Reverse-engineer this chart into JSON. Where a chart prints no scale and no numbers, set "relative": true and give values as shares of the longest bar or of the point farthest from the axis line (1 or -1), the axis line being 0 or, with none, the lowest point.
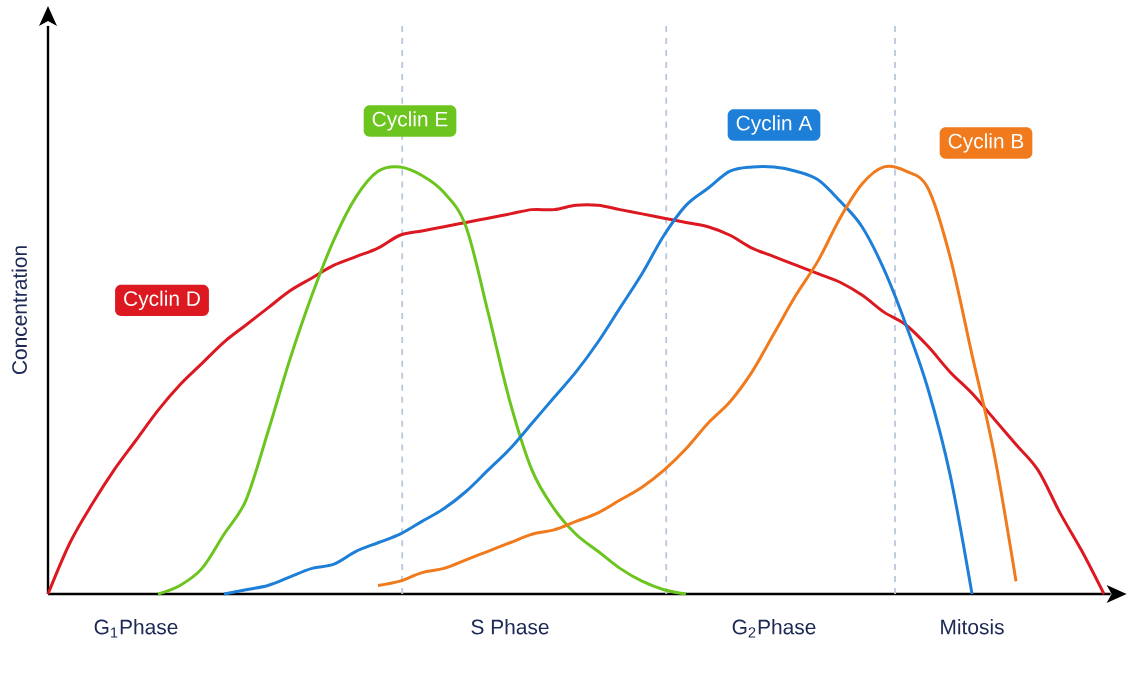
{
  "chart_data": {
    "type": "line",
    "relative": true,
    "ylabel": "Concentration",
    "categories": [
      null,
      null,
      null,
      null,
      "G$_{1}$Phase",
      null,
      null,
      null,
      null,
      null,
      null,
      null,
      null,
      null,
      null,
      null,
      null,
      null,
      null,
      null,
      null,
      "S Phase",
      null,
      null,
      null,
      null,
      null,
      null,
      null,
      null,
      null,
      null,
      null,
      "G$_{2}$Phase",
      null,
      null,
      null,
      null,
      null,
      null,
      null,
      null,
      "Mitosis",
      null,
      null,
      null,
      null,
      null,
      null
    ],
    "marker": "none",
    "line_style": "solid",
    "series": [
      {
        "name": "Cyclin D",
        "color": "#dc1820",
        "values": [
          0,
          0.12,
          0.21,
          0.29,
          0.36,
          0.43,
          0.49,
          0.54,
          0.59,
          0.63,
          0.67,
          0.71,
          0.74,
          0.77,
          0.79,
          0.81,
          0.84,
          0.85,
          0.86,
          0.87,
          0.88,
          0.89,
          0.9,
          0.9,
          0.91,
          0.91,
          0.9,
          0.89,
          0.88,
          0.87,
          0.86,
          0.84,
          0.81,
          0.79,
          0.77,
          0.75,
          0.73,
          0.7,
          0.66,
          0.63,
          0.58,
          0.52,
          0.47,
          0.41,
          0.35,
          0.29,
          0.19,
          0.1,
          0
        ]
      },
      {
        "name": "Cyclin E",
        "color": "#6cc51e",
        "values": [
          null,
          null,
          null,
          null,
          null,
          0,
          0.02,
          0.06,
          0.14,
          0.22,
          0.38,
          0.55,
          0.7,
          0.83,
          0.93,
          0.99,
          1.0,
          0.98,
          0.94,
          0.86,
          0.66,
          0.45,
          0.29,
          0.2,
          0.14,
          0.1,
          0.06,
          0.03,
          0.01,
          0,
          null,
          null,
          null,
          null,
          null,
          null,
          null,
          null,
          null,
          null,
          null,
          null,
          null,
          null,
          null,
          null,
          null,
          null,
          null
        ]
      },
      {
        "name": "Cyclin A",
        "color": "#1e7fd8",
        "values": [
          null,
          null,
          null,
          null,
          null,
          null,
          null,
          null,
          0,
          0.01,
          0.02,
          0.04,
          0.06,
          0.07,
          0.1,
          0.12,
          0.14,
          0.17,
          0.2,
          0.24,
          0.29,
          0.34,
          0.4,
          0.46,
          0.52,
          0.59,
          0.67,
          0.75,
          0.84,
          0.91,
          0.95,
          0.99,
          1.0,
          1.0,
          0.99,
          0.97,
          0.92,
          0.86,
          0.76,
          0.63,
          0.48,
          0.28,
          0,
          null,
          null,
          null,
          null,
          null,
          null
        ]
      },
      {
        "name": "Cyclin B",
        "color": "#f07a1c",
        "values": [
          null,
          null,
          null,
          null,
          null,
          null,
          null,
          null,
          null,
          null,
          null,
          null,
          null,
          null,
          null,
          0.02,
          0.03,
          0.05,
          0.06,
          0.08,
          0.1,
          0.12,
          0.14,
          0.15,
          0.17,
          0.19,
          0.22,
          0.25,
          0.29,
          0.34,
          0.4,
          0.45,
          0.52,
          0.61,
          0.7,
          0.78,
          0.88,
          0.96,
          1.0,
          0.99,
          0.95,
          0.79,
          0.56,
          0.33,
          0.03,
          null,
          null,
          null,
          null
        ]
      }
    ]
  }
}
